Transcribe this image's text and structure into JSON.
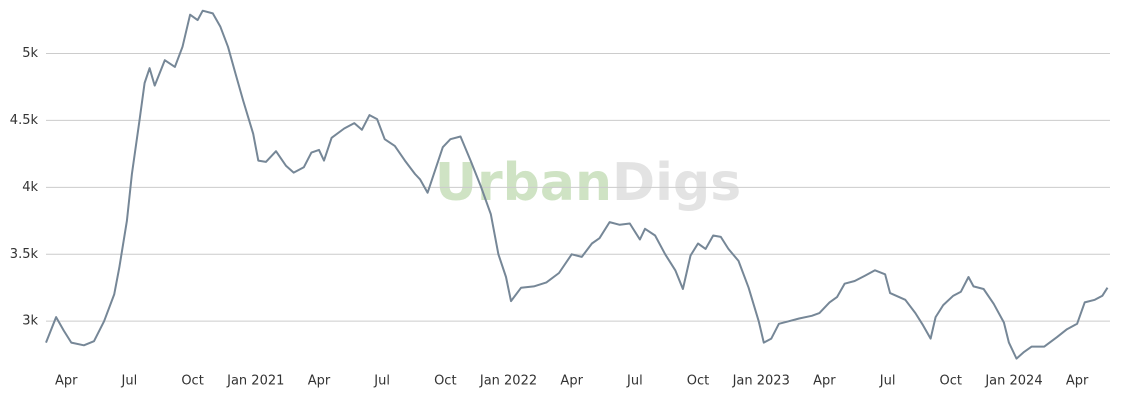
{
  "chart_data": {
    "type": "line",
    "watermark": [
      "Urban",
      "Digs"
    ],
    "watermark_colors": [
      "#cfe3c4",
      "#e3e3e3"
    ],
    "x": [
      2020.17,
      2020.21,
      2020.24,
      2020.27,
      2020.32,
      2020.36,
      2020.4,
      2020.44,
      2020.46,
      2020.49,
      2020.51,
      2020.54,
      2020.56,
      2020.58,
      2020.6,
      2020.64,
      2020.68,
      2020.71,
      2020.74,
      2020.77,
      2020.79,
      2020.83,
      2020.86,
      2020.89,
      2020.92,
      2020.95,
      2020.99,
      2021.01,
      2021.04,
      2021.08,
      2021.12,
      2021.15,
      2021.19,
      2021.22,
      2021.25,
      2021.27,
      2021.3,
      2021.35,
      2021.39,
      2021.42,
      2021.45,
      2021.48,
      2021.51,
      2021.55,
      2021.59,
      2021.63,
      2021.65,
      2021.68,
      2021.71,
      2021.74,
      2021.77,
      2021.81,
      2021.85,
      2021.89,
      2021.93,
      2021.96,
      2021.99,
      2022.01,
      2022.05,
      2022.1,
      2022.15,
      2022.2,
      2022.25,
      2022.29,
      2022.33,
      2022.36,
      2022.4,
      2022.44,
      2022.48,
      2022.52,
      2022.54,
      2022.58,
      2022.62,
      2022.66,
      2022.69,
      2022.72,
      2022.75,
      2022.78,
      2022.81,
      2022.84,
      2022.87,
      2022.91,
      2022.95,
      2022.99,
      2023.01,
      2023.04,
      2023.07,
      2023.11,
      2023.15,
      2023.2,
      2023.23,
      2023.27,
      2023.3,
      2023.33,
      2023.37,
      2023.41,
      2023.45,
      2023.49,
      2023.51,
      2023.57,
      2023.61,
      2023.64,
      2023.67,
      2023.69,
      2023.72,
      2023.76,
      2023.79,
      2023.82,
      2023.84,
      2023.88,
      2023.92,
      2023.96,
      2023.98,
      2024.01,
      2024.04,
      2024.07,
      2024.12,
      2024.17,
      2024.21,
      2024.25,
      2024.28,
      2024.32,
      2024.35,
      2024.37
    ],
    "series": [
      {
        "color": "#768797",
        "values": [
          2840,
          3030,
          2930,
          2840,
          2820,
          2850,
          3000,
          3200,
          3400,
          3750,
          4100,
          4500,
          4780,
          4890,
          4760,
          4950,
          4900,
          5050,
          5290,
          5250,
          5320,
          5300,
          5200,
          5050,
          4850,
          4650,
          4400,
          4200,
          4190,
          4270,
          4160,
          4110,
          4150,
          4260,
          4280,
          4200,
          4370,
          4440,
          4480,
          4430,
          4540,
          4510,
          4360,
          4310,
          4200,
          4100,
          4060,
          3960,
          4130,
          4300,
          4360,
          4380,
          4200,
          4010,
          3800,
          3500,
          3330,
          3150,
          3250,
          3260,
          3290,
          3360,
          3500,
          3480,
          3580,
          3620,
          3740,
          3720,
          3730,
          3610,
          3690,
          3640,
          3500,
          3380,
          3240,
          3490,
          3580,
          3540,
          3640,
          3630,
          3540,
          3450,
          3250,
          3000,
          2840,
          2870,
          2980,
          3000,
          3020,
          3040,
          3060,
          3140,
          3180,
          3280,
          3300,
          3340,
          3380,
          3350,
          3210,
          3160,
          3060,
          2970,
          2870,
          3030,
          3120,
          3190,
          3220,
          3330,
          3260,
          3240,
          3130,
          2990,
          2840,
          2720,
          2770,
          2810,
          2810,
          2880,
          2940,
          2980,
          3140,
          3160,
          3190,
          3250
        ]
      }
    ],
    "xlim": [
      2020.17,
      2024.38
    ],
    "ylim": [
      2650,
      5400
    ],
    "yticks": [
      {
        "value": 3000,
        "label": "3k"
      },
      {
        "value": 3500,
        "label": "3.5k"
      },
      {
        "value": 4000,
        "label": "4k"
      },
      {
        "value": 4500,
        "label": "4.5k"
      },
      {
        "value": 5000,
        "label": "5k"
      }
    ],
    "xticks": [
      {
        "value": 2020.25,
        "label": "Apr"
      },
      {
        "value": 2020.5,
        "label": "Jul"
      },
      {
        "value": 2020.75,
        "label": "Oct"
      },
      {
        "value": 2021,
        "label": "Jan 2021"
      },
      {
        "value": 2021.25,
        "label": "Apr"
      },
      {
        "value": 2021.5,
        "label": "Jul"
      },
      {
        "value": 2021.75,
        "label": "Oct"
      },
      {
        "value": 2022,
        "label": "Jan 2022"
      },
      {
        "value": 2022.25,
        "label": "Apr"
      },
      {
        "value": 2022.5,
        "label": "Jul"
      },
      {
        "value": 2022.75,
        "label": "Oct"
      },
      {
        "value": 2023,
        "label": "Jan 2023"
      },
      {
        "value": 2023.25,
        "label": "Apr"
      },
      {
        "value": 2023.5,
        "label": "Jul"
      },
      {
        "value": 2023.75,
        "label": "Oct"
      },
      {
        "value": 2024,
        "label": "Jan 2024"
      },
      {
        "value": 2024.25,
        "label": "Apr"
      }
    ],
    "grid": true
  }
}
